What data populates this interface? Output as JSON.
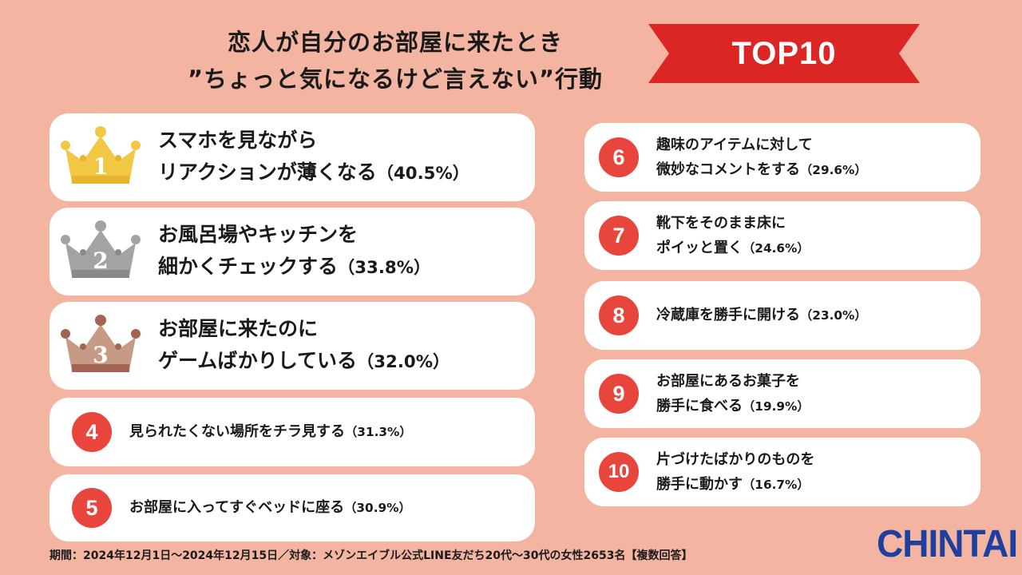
{
  "header": {
    "title_line1": "恋人が自分のお部屋に来たとき",
    "title_line2": "”ちょっと気になるけど言えない”行動",
    "badge": "TOP10"
  },
  "colors": {
    "background": "#f3b5a1",
    "accent_red": "#e8453c",
    "banner_red": "#dc2626",
    "gold": "#f2c744",
    "silver": "#9e9e9e",
    "bronze": "#a97261",
    "logo_blue": "#1f3f9e"
  },
  "ranking": [
    {
      "rank": "1",
      "line1": "スマホを見ながら",
      "line2": "リアクションが薄くなる",
      "pct": "（40.5%）",
      "icon": "gold-crown-icon"
    },
    {
      "rank": "2",
      "line1": "お風呂場やキッチンを",
      "line2": "細かくチェックする",
      "pct": "（33.8%）",
      "icon": "silver-crown-icon"
    },
    {
      "rank": "3",
      "line1": "お部屋に来たのに",
      "line2": "ゲームばかりしている",
      "pct": "（32.0%）",
      "icon": "bronze-crown-icon"
    },
    {
      "rank": "4",
      "line1": "見られたくない場所をチラ見する",
      "pct": "（31.3%）"
    },
    {
      "rank": "5",
      "line1": "お部屋に入ってすぐベッドに座る",
      "pct": "（30.9%）"
    },
    {
      "rank": "6",
      "line1": "趣味のアイテムに対して",
      "line2": "微妙なコメントをする",
      "pct": "（29.6%）"
    },
    {
      "rank": "7",
      "line1": "靴下をそのまま床に",
      "line2": "ポイッと置く",
      "pct": "（24.6%）"
    },
    {
      "rank": "8",
      "line1": "冷蔵庫を勝手に開ける",
      "pct": "（23.0%）"
    },
    {
      "rank": "9",
      "line1": "お部屋にあるお菓子を",
      "line2": "勝手に食べる",
      "pct": "（19.9%）"
    },
    {
      "rank": "10",
      "line1": "片づけたばかりのものを",
      "line2": "勝手に動かす",
      "pct": "（16.7%）"
    }
  ],
  "footer": {
    "note": "期間：2024年12月1日～2024年12月15日／対象：メゾンエイブル公式LINE友だち20代～30代の女性2653名【複数回答】"
  },
  "logo": {
    "text": "CHINTAI"
  }
}
